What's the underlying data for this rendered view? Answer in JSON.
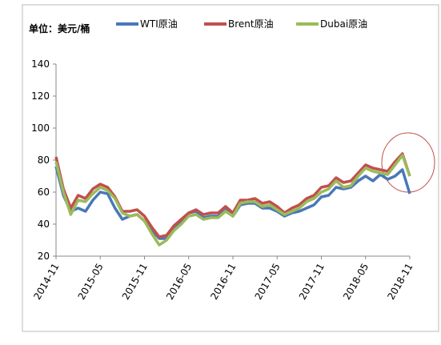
{
  "chart_data": {
    "type": "line",
    "ylabel": "单位：美元/桶",
    "categories": [
      "2014-11",
      null,
      null,
      null,
      null,
      null,
      "2015-05",
      null,
      null,
      null,
      null,
      null,
      "2015-11",
      null,
      null,
      null,
      null,
      null,
      "2016-05",
      null,
      null,
      null,
      null,
      null,
      "2016-11",
      null,
      null,
      null,
      null,
      null,
      "2017-05",
      null,
      null,
      null,
      null,
      null,
      "2017-11",
      null,
      null,
      null,
      null,
      null,
      "2018-05",
      null,
      null,
      null,
      null,
      null,
      "2018-11"
    ],
    "series": [
      {
        "name": "WTI原油",
        "color": "#4a78b8",
        "values": [
          76,
          58,
          48,
          50,
          48,
          55,
          60,
          59,
          50,
          43,
          45,
          46,
          42,
          36,
          31,
          31,
          37,
          42,
          47,
          48,
          44,
          45,
          45,
          49,
          45,
          52,
          53,
          53,
          50,
          50,
          48,
          45,
          47,
          48,
          50,
          52,
          57,
          58,
          63,
          62,
          63,
          67,
          70,
          67,
          71,
          68,
          70,
          74,
          59
        ]
      },
      {
        "name": "Brent原油",
        "color": "#c0504d",
        "values": [
          82,
          62,
          50,
          58,
          56,
          62,
          65,
          63,
          57,
          48,
          48,
          49,
          45,
          38,
          32,
          33,
          39,
          43,
          47,
          49,
          46,
          47,
          47,
          51,
          47,
          55,
          55,
          56,
          53,
          54,
          51,
          47,
          50,
          52,
          56,
          58,
          63,
          64,
          69,
          66,
          67,
          72,
          77,
          75,
          74,
          73,
          79,
          84,
          70
        ]
      },
      {
        "name": "Dubai原油",
        "color": "#9bbb59",
        "values": [
          79,
          60,
          46,
          55,
          54,
          59,
          63,
          61,
          56,
          47,
          45,
          46,
          42,
          34,
          27,
          30,
          36,
          40,
          45,
          46,
          43,
          44,
          44,
          48,
          45,
          53,
          54,
          54,
          51,
          52,
          49,
          46,
          48,
          50,
          54,
          56,
          60,
          62,
          67,
          63,
          64,
          70,
          75,
          73,
          72,
          71,
          77,
          83,
          70
        ]
      }
    ],
    "ylim": [
      20,
      140
    ],
    "yticks": [
      20,
      40,
      60,
      80,
      100,
      120,
      140
    ]
  }
}
